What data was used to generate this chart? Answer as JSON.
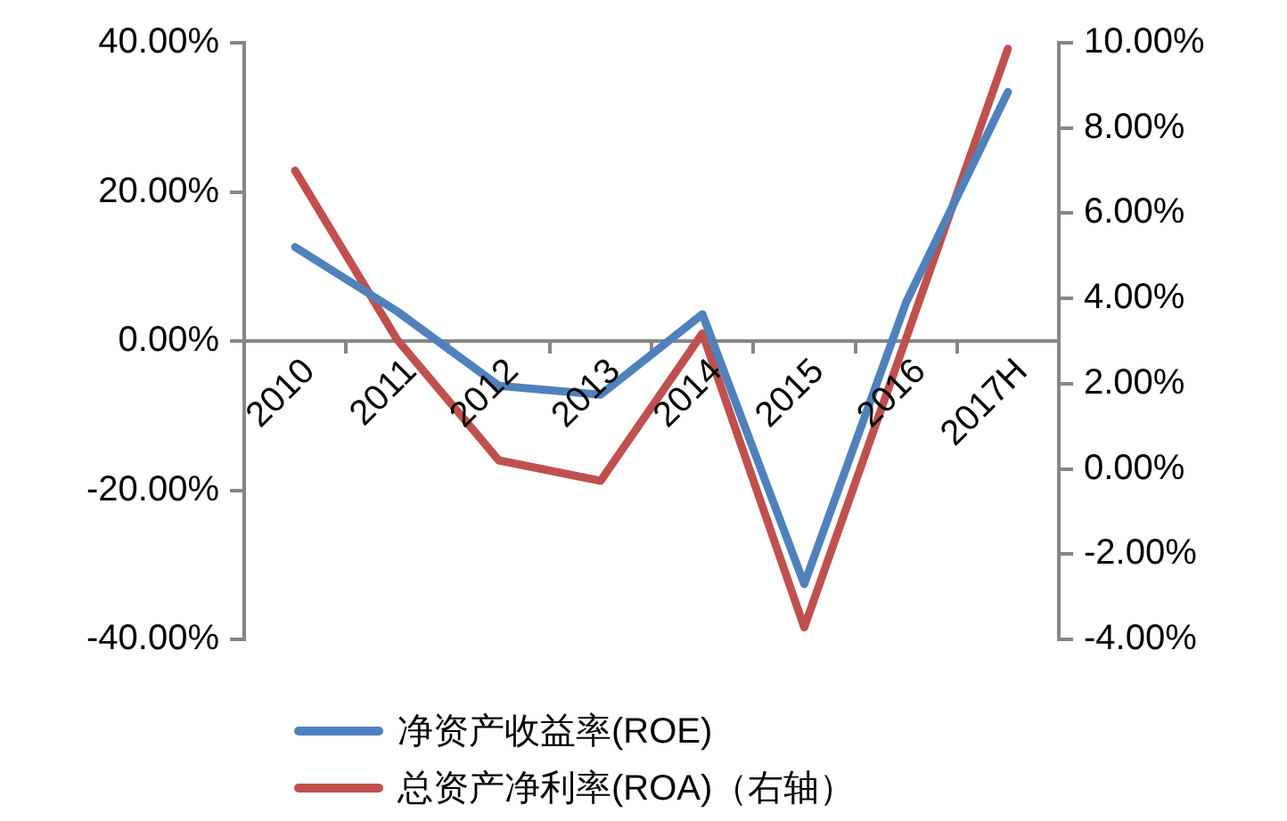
{
  "chart_data": {
    "type": "line",
    "categories": [
      "2010",
      "2011",
      "2012",
      "2013",
      "2014",
      "2015",
      "2016",
      "2017H"
    ],
    "series": [
      {
        "name": "净资产收益率(ROE)",
        "color": "#4f81bd",
        "values": [
          12.6,
          4.0,
          -6.0,
          -7.2,
          3.6,
          -32.6,
          5.2,
          33.4
        ]
      },
      {
        "name": "总资产净利率(ROA)（右轴）",
        "color": "#c0504d",
        "axis": "y2",
        "values": [
          7.0,
          3.04,
          0.2,
          -0.28,
          3.18,
          -3.72,
          3.06,
          9.86
        ]
      }
    ],
    "ylim": [
      -40,
      40
    ],
    "yticks": [
      {
        "value": -40,
        "label": "-40.00%"
      },
      {
        "value": -20,
        "label": "-20.00%"
      },
      {
        "value": 0,
        "label": "0.00%"
      },
      {
        "value": 20,
        "label": "20.00%"
      },
      {
        "value": 40,
        "label": "40.00%"
      }
    ],
    "y2lim": [
      -4,
      10
    ],
    "y2ticks": [
      {
        "value": -4,
        "label": "-4.00%"
      },
      {
        "value": -2,
        "label": "-2.00%"
      },
      {
        "value": 0,
        "label": "0.00%"
      },
      {
        "value": 2,
        "label": "2.00%"
      },
      {
        "value": 4,
        "label": "4.00%"
      },
      {
        "value": 6,
        "label": "6.00%"
      },
      {
        "value": 8,
        "label": "8.00%"
      },
      {
        "value": 10,
        "label": "10.00%"
      }
    ],
    "grid": false,
    "legend": "bottom",
    "marker": "none",
    "line_style": "solid"
  }
}
